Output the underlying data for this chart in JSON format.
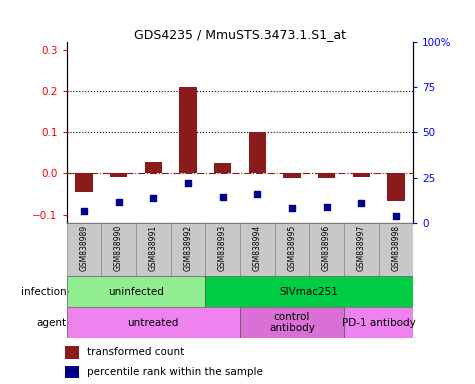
{
  "title": "GDS4235 / MmuSTS.3473.1.S1_at",
  "samples": [
    "GSM838989",
    "GSM838990",
    "GSM838991",
    "GSM838992",
    "GSM838993",
    "GSM838994",
    "GSM838995",
    "GSM838996",
    "GSM838997",
    "GSM838998"
  ],
  "transformed_count": [
    -0.046,
    -0.008,
    0.028,
    0.21,
    0.025,
    0.1,
    -0.012,
    -0.012,
    -0.008,
    -0.068
  ],
  "percentile_rank_pct": [
    6.5,
    11.5,
    13.5,
    22.0,
    14.0,
    15.8,
    8.0,
    8.5,
    10.8,
    3.8
  ],
  "bar_color": "#8B1A1A",
  "dot_color": "#00008B",
  "ylim_left": [
    -0.12,
    0.32
  ],
  "ylim_right": [
    0,
    100
  ],
  "yticks_left": [
    -0.1,
    0.0,
    0.1,
    0.2,
    0.3
  ],
  "yticks_right": [
    0,
    25,
    50,
    75,
    100
  ],
  "hline_values": [
    0.1,
    0.2
  ],
  "infection_groups": [
    {
      "label": "uninfected",
      "start": 0,
      "end": 4,
      "color": "#90EE90"
    },
    {
      "label": "SIVmac251",
      "start": 4,
      "end": 10,
      "color": "#00CC44"
    }
  ],
  "agent_groups": [
    {
      "label": "untreated",
      "start": 0,
      "end": 5,
      "color": "#EE82EE"
    },
    {
      "label": "control\nantibody",
      "start": 5,
      "end": 8,
      "color": "#DA70D6"
    },
    {
      "label": "PD-1 antibody",
      "start": 8,
      "end": 10,
      "color": "#EE82EE"
    }
  ],
  "legend_bar_label": "transformed count",
  "legend_dot_label": "percentile rank within the sample",
  "arrow_color": "#808080"
}
